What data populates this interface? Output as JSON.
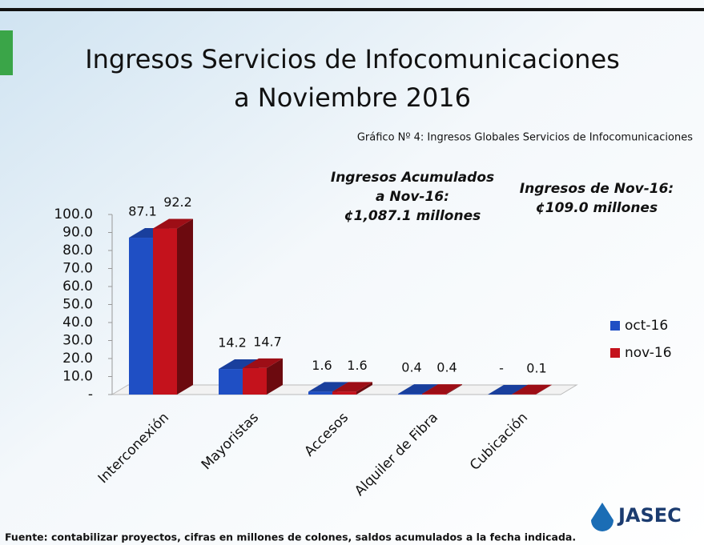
{
  "chart_data": {
    "type": "bar3d",
    "title": [
      "Ingresos Servicios de Infocomunicaciones",
      "a Noviembre 2016"
    ],
    "subtitle": "Gráfico Nº 4: Ingresos Globales Servicios de Infocomunicaciones",
    "annotations": [
      [
        "Ingresos Acumulados",
        "a Nov-16:",
        "¢1,087.1 millones"
      ],
      [
        "Ingresos de Nov-16:",
        "¢109.0 millones"
      ]
    ],
    "footnote": "Fuente: contabilizar proyectos, cifras en millones de colones, saldos acumulados a la fecha indicada.",
    "logo": "JASEC",
    "categories": [
      "Interconexión",
      "Mayoristas",
      "Accesos",
      "Alquiler de Fibra",
      "Cubicación"
    ],
    "series": [
      {
        "name": "oct-16",
        "color": "#1f4fc4",
        "values": [
          87.1,
          14.2,
          1.6,
          0.4,
          0
        ],
        "value_labels": [
          "87.1",
          "14.2",
          "1.6",
          "0.4",
          "-"
        ]
      },
      {
        "name": "nov-16",
        "color": "#c4121c",
        "values": [
          92.2,
          14.7,
          1.6,
          0.4,
          0.1
        ],
        "value_labels": [
          "92.2",
          "14.7",
          "1.6",
          "0.4",
          "0.1"
        ]
      }
    ],
    "ylim": [
      0,
      100
    ],
    "yticks": [
      {
        "value": 0,
        "label": "-"
      },
      {
        "value": 10,
        "label": "10.0"
      },
      {
        "value": 20,
        "label": "20.0"
      },
      {
        "value": 30,
        "label": "30.0"
      },
      {
        "value": 40,
        "label": "40.0"
      },
      {
        "value": 50,
        "label": "50.0"
      },
      {
        "value": 60,
        "label": "60.0"
      },
      {
        "value": 70,
        "label": "70.0"
      },
      {
        "value": 80,
        "label": "80.0"
      },
      {
        "value": 90,
        "label": "90.0"
      },
      {
        "value": 100,
        "label": "100.0"
      }
    ],
    "legend": "right"
  }
}
